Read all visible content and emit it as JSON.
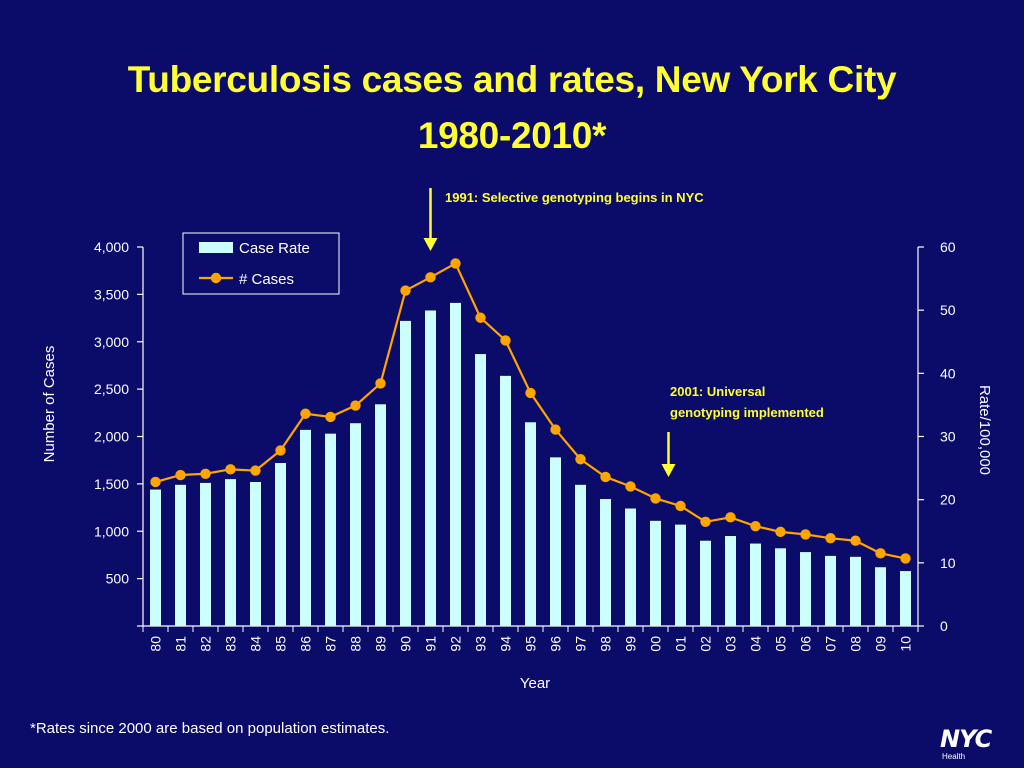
{
  "slide": {
    "title_line1": "Tuberculosis cases and rates, New York City",
    "title_line2": "1980-2010*",
    "footnote": "*Rates since 2000 are based on population estimates.",
    "logo_text": "NYC",
    "logo_sub": "Health",
    "background": "#0b0b6a",
    "title_color": "#ffff33"
  },
  "chart_data": {
    "type": "bar+line",
    "title": "Tuberculosis cases and rates, New York City 1980-2010*",
    "xlabel": "Year",
    "ylabel_left": "Number of Cases",
    "ylabel_right": "Rate/100,000",
    "categories": [
      "80",
      "81",
      "82",
      "83",
      "84",
      "85",
      "86",
      "87",
      "88",
      "89",
      "90",
      "91",
      "92",
      "93",
      "94",
      "95",
      "96",
      "97",
      "98",
      "99",
      "00",
      "01",
      "02",
      "03",
      "04",
      "05",
      "06",
      "07",
      "08",
      "09",
      "10"
    ],
    "left_axis": {
      "min": 0,
      "max": 4000,
      "ticks": [
        "500",
        "1,000",
        "1,500",
        "2,000",
        "2,500",
        "3,000",
        "3,500",
        "4,000"
      ],
      "tick_values": [
        500,
        1000,
        1500,
        2000,
        2500,
        3000,
        3500,
        4000
      ]
    },
    "right_axis": {
      "min": 0,
      "max": 60,
      "ticks": [
        "0",
        "10",
        "20",
        "30",
        "40",
        "50",
        "60"
      ],
      "tick_values": [
        0,
        10,
        20,
        30,
        40,
        50,
        60
      ]
    },
    "series": [
      {
        "name": "Case Rate",
        "kind": "bar",
        "axis": "left",
        "color": "#ccffff",
        "values": [
          1440,
          1490,
          1510,
          1550,
          1520,
          1720,
          2070,
          2030,
          2140,
          2340,
          3220,
          3330,
          3410,
          2870,
          2640,
          2150,
          1780,
          1490,
          1340,
          1240,
          1110,
          1070,
          900,
          950,
          870,
          820,
          780,
          740,
          730,
          620,
          580
        ]
      },
      {
        "name": "# Cases",
        "kind": "line",
        "axis": "right",
        "color": "#ffa500",
        "values": [
          22.8,
          23.9,
          24.1,
          24.8,
          24.6,
          27.8,
          33.6,
          33.1,
          34.9,
          38.4,
          53.1,
          55.2,
          57.4,
          48.8,
          45.2,
          36.9,
          31.1,
          26.4,
          23.6,
          22.1,
          20.2,
          19.0,
          16.5,
          17.2,
          15.8,
          14.9,
          14.5,
          13.9,
          13.5,
          11.5,
          10.7
        ]
      }
    ],
    "legend": {
      "position": "top-left",
      "entries": [
        "Case Rate",
        "# Cases"
      ]
    },
    "annotations": [
      {
        "text": "1991: Selective genotyping begins in NYC",
        "category": "91"
      },
      {
        "text_line1": "2001: Universal",
        "text_line2": "genotyping implemented",
        "category": "01"
      }
    ],
    "annotation_color": "#ffff33"
  }
}
